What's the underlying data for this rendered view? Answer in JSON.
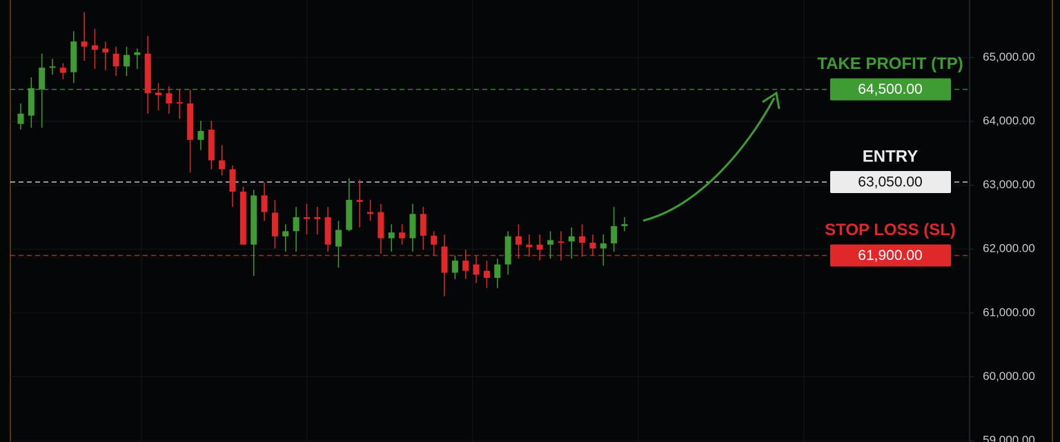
{
  "chart_data": {
    "type": "candlestick",
    "open": [
      63960,
      64090,
      64500,
      64840,
      64840,
      64770,
      65250,
      65190,
      65140,
      65060,
      64860,
      65040,
      65060,
      64450,
      64440,
      64300,
      64280,
      63710,
      63870,
      63390,
      63250,
      62900,
      62070,
      62840,
      62570,
      62200,
      62280,
      62500,
      62500,
      62500,
      62040,
      62300,
      62770,
      62580,
      62580,
      62170,
      62260,
      62170,
      62550,
      62210,
      62040,
      61630,
      61820,
      61760,
      61660,
      61550,
      61760,
      62200,
      62070,
      62070,
      62070,
      62120,
      62120,
      62200,
      62100,
      62010,
      62090,
      62360
    ],
    "high": [
      64280,
      64690,
      65060,
      64980,
      64910,
      65410,
      65710,
      65450,
      65250,
      65170,
      65170,
      65140,
      65340,
      64600,
      64550,
      64500,
      64500,
      64010,
      64010,
      63630,
      63310,
      62980,
      62930,
      63040,
      62770,
      62390,
      62660,
      62710,
      62660,
      62660,
      62440,
      63110,
      63090,
      62770,
      62710,
      62390,
      62390,
      62710,
      62660,
      62280,
      62230,
      61900,
      61990,
      61900,
      61820,
      61850,
      62280,
      62390,
      62230,
      62230,
      62280,
      62280,
      62340,
      62390,
      62230,
      62230,
      62660,
      62500
    ],
    "low": [
      63870,
      63900,
      63900,
      64730,
      64660,
      64600,
      64950,
      64820,
      64800,
      64710,
      64710,
      64820,
      64120,
      64170,
      64120,
      64040,
      63200,
      63550,
      63250,
      63150,
      62660,
      62070,
      61580,
      62440,
      62010,
      61960,
      61960,
      62230,
      62230,
      61960,
      61710,
      62280,
      62340,
      62440,
      61930,
      61960,
      62070,
      61960,
      61990,
      61900,
      61260,
      61530,
      61530,
      61470,
      61390,
      61390,
      61600,
      61850,
      61880,
      61820,
      61850,
      61820,
      61850,
      61880,
      61900,
      61740,
      61960,
      62280
    ],
    "close": [
      64120,
      64520,
      64840,
      64860,
      64760,
      65250,
      65170,
      65120,
      65080,
      64860,
      65040,
      65080,
      64440,
      64410,
      64280,
      64280,
      63710,
      63850,
      63390,
      63250,
      62900,
      62070,
      62840,
      62580,
      62200,
      62280,
      62500,
      62470,
      62470,
      62070,
      62300,
      62770,
      62740,
      62550,
      62170,
      62260,
      62170,
      62550,
      62210,
      62070,
      61630,
      61820,
      61660,
      61600,
      61550,
      61760,
      62200,
      62070,
      62030,
      61990,
      62140,
      62100,
      62200,
      62100,
      62010,
      62090,
      62360,
      62390
    ],
    "up_color": "#3f9c35",
    "down_color": "#e0282b",
    "ylim": [
      58980,
      65900
    ],
    "yticks": [
      {
        "value": 59000,
        "label": "59,000.00"
      },
      {
        "value": 60000,
        "label": "60,000.00"
      },
      {
        "value": 61000,
        "label": "61,000.00"
      },
      {
        "value": 62000,
        "label": "62,000.00"
      },
      {
        "value": 63000,
        "label": "63,000.00"
      },
      {
        "value": 64000,
        "label": "64,000.00"
      },
      {
        "value": 65000,
        "label": "65,000.00"
      }
    ],
    "grid": true,
    "levels": [
      {
        "name": "TAKE PROFIT (TP)",
        "value": 64500,
        "value_label": "64,500.00",
        "color": "#3f9c35",
        "text_color": "#ffffff"
      },
      {
        "name": "ENTRY",
        "value": 63050,
        "value_label": "63,050.00",
        "color": "#ececec",
        "text_color": "#111111"
      },
      {
        "name": "STOP LOSS (SL)",
        "value": 61900,
        "value_label": "61,900.00",
        "color": "#e0282b",
        "text_color": "#ffffff"
      }
    ]
  }
}
